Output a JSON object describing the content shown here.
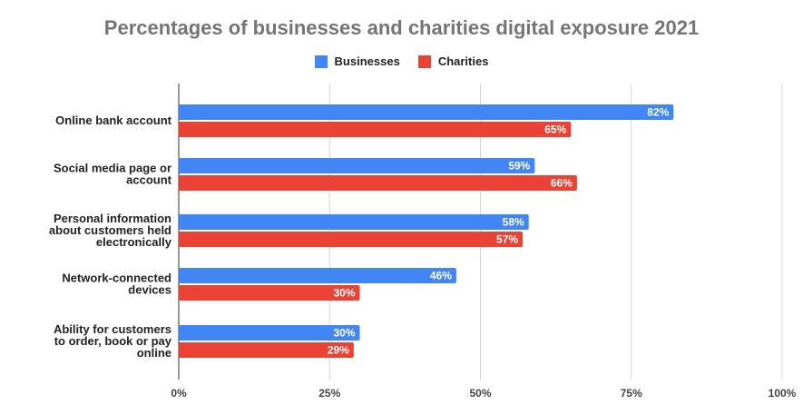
{
  "chart_data": {
    "type": "bar",
    "orientation": "horizontal",
    "title": "Percentages of businesses and charities digital exposure 2021",
    "categories": [
      [
        "Online bank account"
      ],
      [
        "Social media page or",
        "account"
      ],
      [
        "Personal information",
        "about customers held",
        "electronically"
      ],
      [
        "Network-connected",
        "devices"
      ],
      [
        "Ability for customers",
        "to order, book or pay",
        "online"
      ]
    ],
    "series": [
      {
        "name": "Businesses",
        "color": "#4285f4",
        "values": [
          82,
          59,
          58,
          46,
          30
        ],
        "labels": [
          "82%",
          "59%",
          "58%",
          "46%",
          "30%"
        ]
      },
      {
        "name": "Charities",
        "color": "#ea4335",
        "values": [
          65,
          66,
          57,
          30,
          29
        ],
        "labels": [
          "65%",
          "66%",
          "57%",
          "30%",
          "29%"
        ]
      }
    ],
    "xlim": [
      0,
      100
    ],
    "xticks": [
      0,
      25,
      50,
      75,
      100
    ],
    "xtick_labels": [
      "0%",
      "25%",
      "50%",
      "75%",
      "100%"
    ],
    "grid": true,
    "legend_position": "top"
  }
}
